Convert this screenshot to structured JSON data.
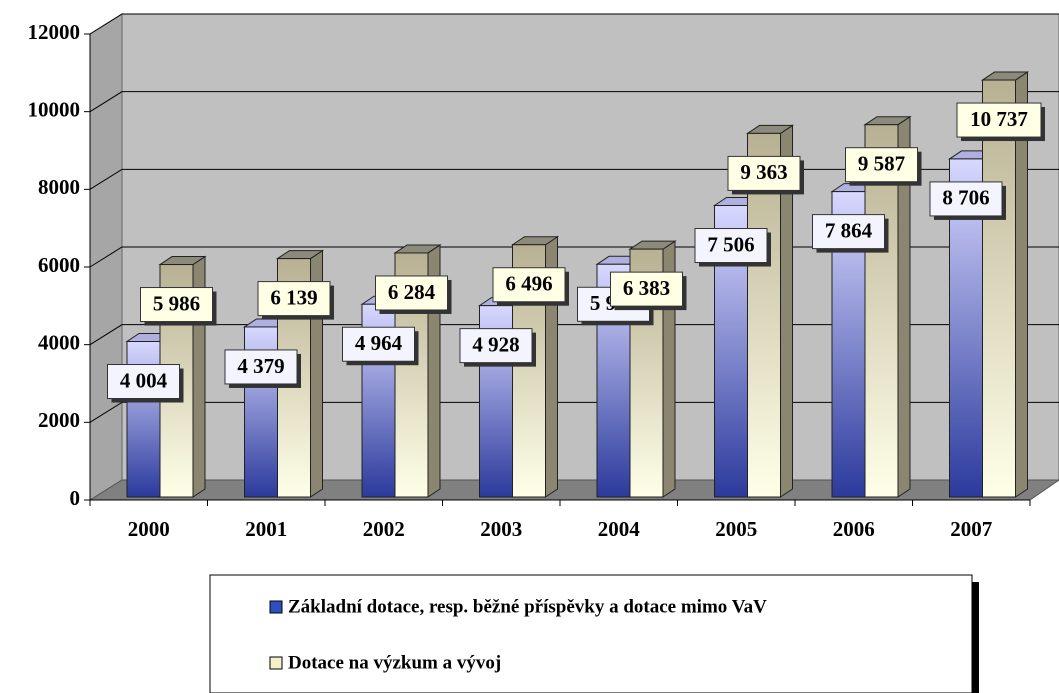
{
  "chart_data": {
    "type": "bar",
    "categories": [
      "2000",
      "2001",
      "2002",
      "2003",
      "2004",
      "2005",
      "2006",
      "2007"
    ],
    "series": [
      {
        "name": "Základní dotace, resp. běžné příspěvky a dotace mimo VaV",
        "color": "#2b3a9c",
        "values": [
          4004,
          4379,
          4964,
          4928,
          5993,
          7506,
          7864,
          8706
        ],
        "value_labels": [
          "4 004",
          "4 379",
          "4 964",
          "4 928",
          "5 993",
          "7 506",
          "7 864",
          "8 706"
        ]
      },
      {
        "name": "Dotace na výzkum a vývoj",
        "color": "#ecе6b8",
        "values": [
          5986,
          6139,
          6284,
          6496,
          6383,
          9363,
          9587,
          10737
        ],
        "value_labels": [
          "5 986",
          "6 139",
          "6 284",
          "6 496",
          "6 383",
          "9 363",
          "9 587",
          "10 737"
        ]
      }
    ],
    "ylim": [
      0,
      12000
    ],
    "yticks": [
      0,
      2000,
      4000,
      6000,
      8000,
      10000,
      12000
    ],
    "grid": true
  }
}
